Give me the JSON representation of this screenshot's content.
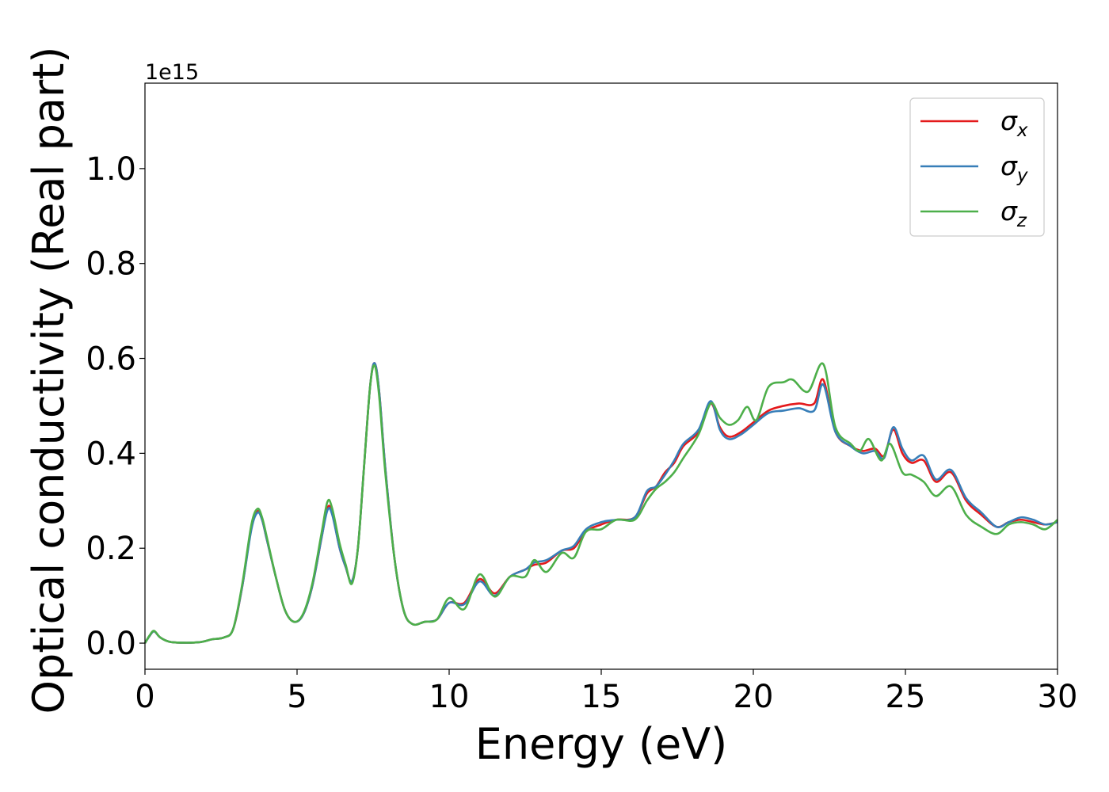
{
  "chart_data": {
    "type": "line",
    "title": "",
    "xlabel": "Energy (eV)",
    "ylabel": "Optical conductivity (Real part)",
    "offset_text": "1e15",
    "xlim": [
      0,
      30
    ],
    "ylim": [
      -0.055,
      1.18
    ],
    "y_scale_multiplier": 1000000000000000.0,
    "grid": false,
    "legend_position": "top-right",
    "xticks": [
      0,
      5,
      10,
      15,
      20,
      25,
      30
    ],
    "xtick_labels": [
      "0",
      "5",
      "10",
      "15",
      "20",
      "25",
      "30"
    ],
    "yticks": [
      0.0,
      0.2,
      0.4,
      0.6,
      0.8,
      1.0
    ],
    "ytick_labels": [
      "0.0",
      "0.2",
      "0.4",
      "0.6",
      "0.8",
      "1.0"
    ],
    "series": [
      {
        "name": "σx",
        "legend_symbol": "σ",
        "legend_subscript": "x",
        "color": "#e41a1c",
        "points": [
          [
            0,
            0.0
          ],
          [
            0.15,
            0.015
          ],
          [
            0.3,
            0.025
          ],
          [
            0.5,
            0.012
          ],
          [
            0.8,
            0.003
          ],
          [
            1.2,
            0.001
          ],
          [
            1.8,
            0.002
          ],
          [
            2.2,
            0.008
          ],
          [
            2.6,
            0.012
          ],
          [
            2.9,
            0.03
          ],
          [
            3.2,
            0.12
          ],
          [
            3.5,
            0.245
          ],
          [
            3.7,
            0.278
          ],
          [
            3.85,
            0.26
          ],
          [
            4.0,
            0.22
          ],
          [
            4.3,
            0.14
          ],
          [
            4.6,
            0.07
          ],
          [
            4.9,
            0.045
          ],
          [
            5.2,
            0.06
          ],
          [
            5.5,
            0.12
          ],
          [
            5.8,
            0.22
          ],
          [
            6.0,
            0.285
          ],
          [
            6.15,
            0.275
          ],
          [
            6.4,
            0.2
          ],
          [
            6.6,
            0.16
          ],
          [
            6.8,
            0.13
          ],
          [
            7.0,
            0.2
          ],
          [
            7.2,
            0.37
          ],
          [
            7.4,
            0.54
          ],
          [
            7.55,
            0.59
          ],
          [
            7.7,
            0.53
          ],
          [
            7.9,
            0.37
          ],
          [
            8.2,
            0.18
          ],
          [
            8.5,
            0.07
          ],
          [
            8.8,
            0.04
          ],
          [
            9.2,
            0.045
          ],
          [
            9.6,
            0.05
          ],
          [
            10.0,
            0.085
          ],
          [
            10.5,
            0.085
          ],
          [
            11.0,
            0.135
          ],
          [
            11.5,
            0.105
          ],
          [
            12.0,
            0.14
          ],
          [
            12.5,
            0.155
          ],
          [
            12.8,
            0.165
          ],
          [
            13.2,
            0.17
          ],
          [
            13.7,
            0.195
          ],
          [
            14.1,
            0.2
          ],
          [
            14.5,
            0.235
          ],
          [
            15.0,
            0.25
          ],
          [
            15.5,
            0.26
          ],
          [
            16.1,
            0.265
          ],
          [
            16.5,
            0.315
          ],
          [
            16.8,
            0.33
          ],
          [
            17.1,
            0.36
          ],
          [
            17.4,
            0.38
          ],
          [
            17.7,
            0.415
          ],
          [
            18.2,
            0.445
          ],
          [
            18.6,
            0.505
          ],
          [
            18.9,
            0.455
          ],
          [
            19.2,
            0.435
          ],
          [
            19.6,
            0.445
          ],
          [
            20.0,
            0.465
          ],
          [
            20.5,
            0.49
          ],
          [
            21.0,
            0.5
          ],
          [
            21.5,
            0.505
          ],
          [
            22.0,
            0.505
          ],
          [
            22.3,
            0.555
          ],
          [
            22.7,
            0.445
          ],
          [
            23.2,
            0.415
          ],
          [
            23.6,
            0.405
          ],
          [
            24.0,
            0.41
          ],
          [
            24.3,
            0.395
          ],
          [
            24.6,
            0.45
          ],
          [
            24.9,
            0.4
          ],
          [
            25.2,
            0.38
          ],
          [
            25.6,
            0.385
          ],
          [
            26.0,
            0.34
          ],
          [
            26.5,
            0.36
          ],
          [
            27.0,
            0.3
          ],
          [
            27.5,
            0.27
          ],
          [
            28.0,
            0.245
          ],
          [
            28.4,
            0.255
          ],
          [
            28.8,
            0.26
          ],
          [
            29.2,
            0.255
          ],
          [
            29.6,
            0.25
          ],
          [
            30.0,
            0.255
          ]
        ]
      },
      {
        "name": "σy",
        "legend_symbol": "σ",
        "legend_subscript": "y",
        "color": "#377eb8",
        "points": [
          [
            0,
            0.0
          ],
          [
            0.15,
            0.015
          ],
          [
            0.3,
            0.025
          ],
          [
            0.5,
            0.012
          ],
          [
            0.8,
            0.003
          ],
          [
            1.2,
            0.001
          ],
          [
            1.8,
            0.002
          ],
          [
            2.2,
            0.008
          ],
          [
            2.6,
            0.012
          ],
          [
            2.9,
            0.03
          ],
          [
            3.2,
            0.12
          ],
          [
            3.5,
            0.24
          ],
          [
            3.7,
            0.275
          ],
          [
            3.85,
            0.26
          ],
          [
            4.0,
            0.22
          ],
          [
            4.3,
            0.14
          ],
          [
            4.6,
            0.07
          ],
          [
            4.9,
            0.045
          ],
          [
            5.2,
            0.06
          ],
          [
            5.5,
            0.12
          ],
          [
            5.8,
            0.22
          ],
          [
            6.0,
            0.28
          ],
          [
            6.15,
            0.272
          ],
          [
            6.4,
            0.2
          ],
          [
            6.6,
            0.16
          ],
          [
            6.8,
            0.13
          ],
          [
            7.0,
            0.2
          ],
          [
            7.2,
            0.37
          ],
          [
            7.4,
            0.54
          ],
          [
            7.55,
            0.59
          ],
          [
            7.7,
            0.53
          ],
          [
            7.9,
            0.37
          ],
          [
            8.2,
            0.18
          ],
          [
            8.5,
            0.07
          ],
          [
            8.8,
            0.04
          ],
          [
            9.2,
            0.045
          ],
          [
            9.6,
            0.05
          ],
          [
            10.0,
            0.085
          ],
          [
            10.5,
            0.082
          ],
          [
            11.0,
            0.13
          ],
          [
            11.5,
            0.1
          ],
          [
            12.0,
            0.14
          ],
          [
            12.5,
            0.155
          ],
          [
            12.8,
            0.17
          ],
          [
            13.2,
            0.175
          ],
          [
            13.7,
            0.195
          ],
          [
            14.1,
            0.205
          ],
          [
            14.5,
            0.24
          ],
          [
            15.0,
            0.255
          ],
          [
            15.5,
            0.26
          ],
          [
            16.1,
            0.265
          ],
          [
            16.5,
            0.32
          ],
          [
            16.8,
            0.33
          ],
          [
            17.1,
            0.355
          ],
          [
            17.4,
            0.385
          ],
          [
            17.7,
            0.42
          ],
          [
            18.2,
            0.45
          ],
          [
            18.6,
            0.51
          ],
          [
            18.9,
            0.45
          ],
          [
            19.2,
            0.43
          ],
          [
            19.6,
            0.44
          ],
          [
            20.0,
            0.46
          ],
          [
            20.5,
            0.485
          ],
          [
            21.0,
            0.49
          ],
          [
            21.5,
            0.495
          ],
          [
            22.0,
            0.49
          ],
          [
            22.3,
            0.545
          ],
          [
            22.7,
            0.445
          ],
          [
            23.2,
            0.415
          ],
          [
            23.6,
            0.4
          ],
          [
            24.0,
            0.405
          ],
          [
            24.3,
            0.39
          ],
          [
            24.6,
            0.455
          ],
          [
            24.9,
            0.41
          ],
          [
            25.2,
            0.385
          ],
          [
            25.6,
            0.395
          ],
          [
            26.0,
            0.345
          ],
          [
            26.5,
            0.365
          ],
          [
            27.0,
            0.305
          ],
          [
            27.5,
            0.275
          ],
          [
            28.0,
            0.245
          ],
          [
            28.4,
            0.255
          ],
          [
            28.8,
            0.265
          ],
          [
            29.2,
            0.26
          ],
          [
            29.6,
            0.25
          ],
          [
            30.0,
            0.255
          ]
        ]
      },
      {
        "name": "σz",
        "legend_symbol": "σ",
        "legend_subscript": "z",
        "color": "#4daf4a",
        "points": [
          [
            0,
            0.0
          ],
          [
            0.15,
            0.016
          ],
          [
            0.3,
            0.026
          ],
          [
            0.5,
            0.012
          ],
          [
            0.8,
            0.003
          ],
          [
            1.2,
            0.001
          ],
          [
            1.8,
            0.002
          ],
          [
            2.2,
            0.008
          ],
          [
            2.6,
            0.012
          ],
          [
            2.9,
            0.03
          ],
          [
            3.2,
            0.125
          ],
          [
            3.5,
            0.25
          ],
          [
            3.7,
            0.283
          ],
          [
            3.85,
            0.265
          ],
          [
            4.0,
            0.225
          ],
          [
            4.3,
            0.14
          ],
          [
            4.6,
            0.07
          ],
          [
            4.9,
            0.045
          ],
          [
            5.2,
            0.062
          ],
          [
            5.5,
            0.125
          ],
          [
            5.8,
            0.23
          ],
          [
            6.0,
            0.298
          ],
          [
            6.15,
            0.285
          ],
          [
            6.4,
            0.21
          ],
          [
            6.6,
            0.165
          ],
          [
            6.8,
            0.125
          ],
          [
            7.0,
            0.2
          ],
          [
            7.2,
            0.37
          ],
          [
            7.4,
            0.54
          ],
          [
            7.55,
            0.585
          ],
          [
            7.7,
            0.52
          ],
          [
            7.9,
            0.36
          ],
          [
            8.2,
            0.18
          ],
          [
            8.5,
            0.07
          ],
          [
            8.8,
            0.04
          ],
          [
            9.2,
            0.045
          ],
          [
            9.6,
            0.05
          ],
          [
            10.0,
            0.095
          ],
          [
            10.5,
            0.072
          ],
          [
            11.0,
            0.145
          ],
          [
            11.5,
            0.098
          ],
          [
            12.0,
            0.14
          ],
          [
            12.5,
            0.14
          ],
          [
            12.8,
            0.175
          ],
          [
            13.2,
            0.15
          ],
          [
            13.7,
            0.19
          ],
          [
            14.1,
            0.18
          ],
          [
            14.5,
            0.235
          ],
          [
            15.0,
            0.24
          ],
          [
            15.5,
            0.26
          ],
          [
            16.1,
            0.26
          ],
          [
            16.5,
            0.3
          ],
          [
            16.8,
            0.325
          ],
          [
            17.1,
            0.34
          ],
          [
            17.4,
            0.36
          ],
          [
            17.7,
            0.39
          ],
          [
            18.2,
            0.44
          ],
          [
            18.6,
            0.505
          ],
          [
            18.9,
            0.475
          ],
          [
            19.2,
            0.46
          ],
          [
            19.5,
            0.47
          ],
          [
            19.8,
            0.498
          ],
          [
            20.1,
            0.47
          ],
          [
            20.5,
            0.54
          ],
          [
            21.0,
            0.55
          ],
          [
            21.3,
            0.555
          ],
          [
            21.8,
            0.53
          ],
          [
            22.3,
            0.588
          ],
          [
            22.7,
            0.455
          ],
          [
            23.2,
            0.42
          ],
          [
            23.5,
            0.405
          ],
          [
            23.8,
            0.43
          ],
          [
            24.2,
            0.385
          ],
          [
            24.5,
            0.42
          ],
          [
            24.9,
            0.36
          ],
          [
            25.2,
            0.355
          ],
          [
            25.6,
            0.34
          ],
          [
            26.0,
            0.31
          ],
          [
            26.5,
            0.33
          ],
          [
            27.0,
            0.27
          ],
          [
            27.5,
            0.245
          ],
          [
            28.0,
            0.23
          ],
          [
            28.4,
            0.25
          ],
          [
            28.8,
            0.255
          ],
          [
            29.2,
            0.25
          ],
          [
            29.6,
            0.24
          ],
          [
            30.0,
            0.26
          ]
        ]
      }
    ]
  }
}
